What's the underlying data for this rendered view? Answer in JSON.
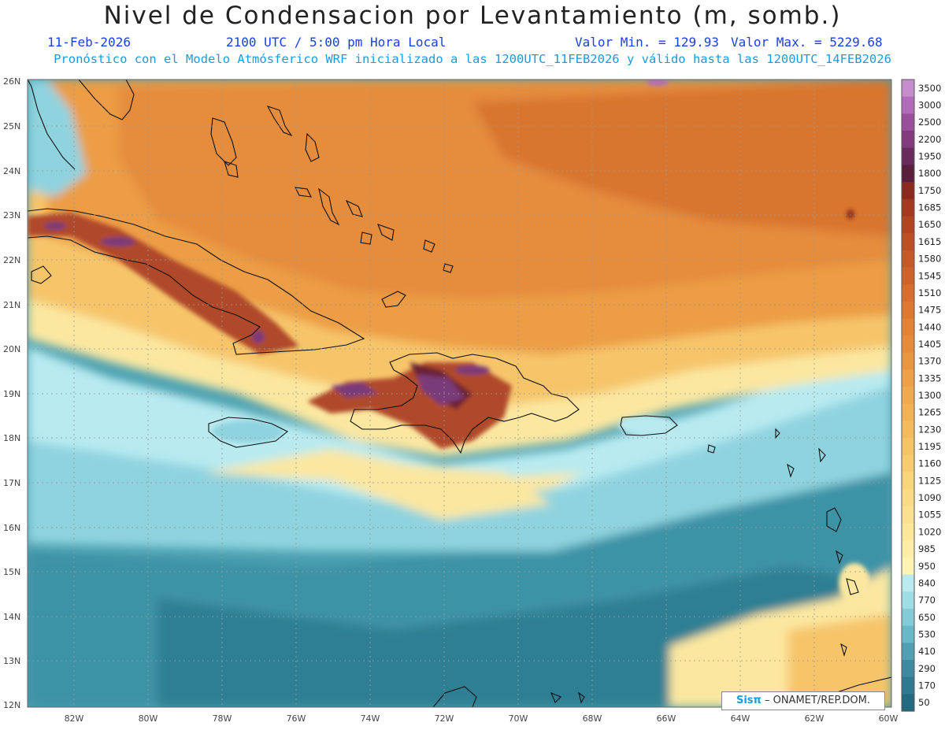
{
  "header": {
    "title": "Nivel de Condensacion por Levantamiento (m, somb.)",
    "date": "11-Feb-2026",
    "time": "2100 UTC / 5:00 pm Hora Local",
    "min_value": "Valor Min. = 129.93",
    "max_value": "Valor Max. = 5229.68",
    "forecast_note": "Pronóstico con el Modelo Atmósferico WRF inicializado a las 1200UTC_11FEB2026 y válido hasta las  1200UTC_14FEB2026"
  },
  "map": {
    "lat_labels": [
      "26N",
      "25N",
      "24N",
      "23N",
      "22N",
      "21N",
      "20N",
      "19N",
      "18N",
      "17N",
      "16N",
      "15N",
      "14N",
      "13N",
      "12N"
    ],
    "lon_labels": [
      "82W",
      "80W",
      "78W",
      "76W",
      "74W",
      "72W",
      "70W",
      "68W",
      "66W",
      "64W",
      "62W",
      "60W"
    ],
    "grid": true,
    "shading_colors": {
      "deep_teal": "#2e7f93",
      "teal": "#4aa0b0",
      "light_teal": "#8fd3df",
      "pale_cyan": "#b8eaf0",
      "pale_yellow": "#fbe7a0",
      "light_orange": "#f6c56a",
      "orange": "#ec9d45",
      "dark_orange": "#d8752e",
      "brown": "#a84a2a",
      "maroon": "#6a2330",
      "purple": "#7a3a7a",
      "violet": "#b36cb8"
    }
  },
  "colorbar": {
    "levels": [
      "3500",
      "3000",
      "2500",
      "2200",
      "1950",
      "1800",
      "1750",
      "1685",
      "1650",
      "1615",
      "1580",
      "1545",
      "1510",
      "1475",
      "1440",
      "1405",
      "1370",
      "1335",
      "1300",
      "1265",
      "1230",
      "1195",
      "1160",
      "1125",
      "1090",
      "1055",
      "1020",
      "985",
      "950",
      "840",
      "770",
      "650",
      "530",
      "410",
      "290",
      "170",
      "50"
    ],
    "colors": [
      "#c68ccc",
      "#b26bba",
      "#9a4f9d",
      "#823a7d",
      "#6a2a5e",
      "#5a1f3a",
      "#8a2a1e",
      "#a33a1f",
      "#b04520",
      "#bb5024",
      "#c45a28",
      "#cd632b",
      "#d56e2f",
      "#dc7832",
      "#e18237",
      "#e58c3c",
      "#e99641",
      "#eda047",
      "#efa94e",
      "#f1b256",
      "#f3bb5e",
      "#f5c467",
      "#f7cc70",
      "#f8d47b",
      "#f9da85",
      "#fbe08f",
      "#fce79b",
      "#fdeda7",
      "#fef3b2",
      "#b8eaf0",
      "#9edce6",
      "#82cbd7",
      "#68b8c7",
      "#529fb3",
      "#3f8aa1",
      "#2f7a90",
      "#236a80"
    ]
  },
  "credit": {
    "brand": "Sisπ",
    "text": "– ONAMET/REP.DOM."
  }
}
